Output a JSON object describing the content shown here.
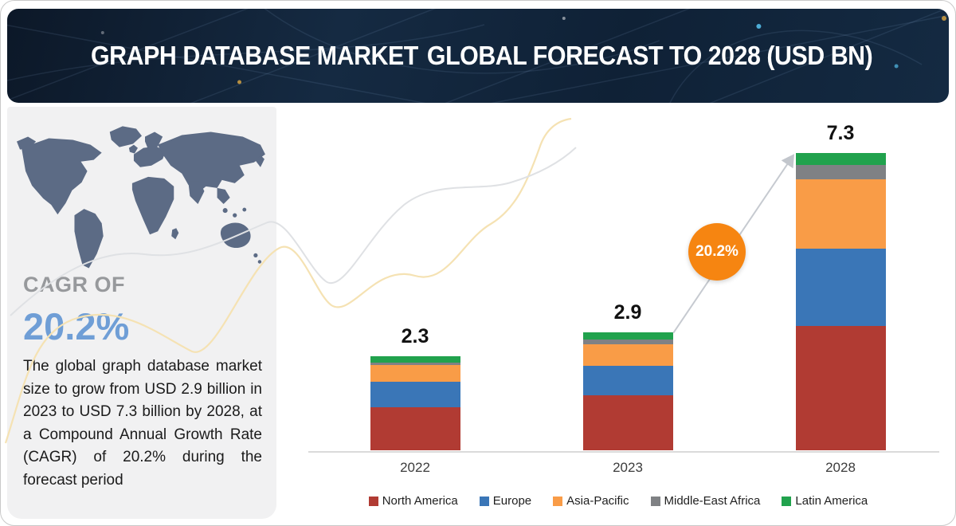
{
  "header": {
    "title_part1": "GRAPH DATABASE MARKET",
    "title_part2": "GLOBAL FORECAST TO 2028 (USD BN)",
    "bg_color": "#14273d"
  },
  "sidebar": {
    "cagr_label": "CAGR OF",
    "cagr_value": "20.2%",
    "description": "The global graph database market size to grow from USD 2.9 billion in 2023 to USD 7.3 billion by 2028, at a Compound Annual Growth Rate (CAGR) of 20.2% during the forecast period",
    "accent_color": "#6f9ed6",
    "map_color": "#5c6b85"
  },
  "chart_data": {
    "type": "bar",
    "stacked": true,
    "title": "Graph Database Market Global Forecast to 2028 (USD BN)",
    "categories": [
      "2022",
      "2023",
      "2028"
    ],
    "series": [
      {
        "name": "North America",
        "color": "#b13b33",
        "values": [
          1.06,
          1.35,
          3.05
        ]
      },
      {
        "name": "Europe",
        "color": "#3a76b7",
        "values": [
          0.63,
          0.72,
          1.9
        ]
      },
      {
        "name": "Asia-Pacific",
        "color": "#f99c47",
        "values": [
          0.41,
          0.53,
          1.7
        ]
      },
      {
        "name": "Middle-East Africa",
        "color": "#7f8184",
        "values": [
          0.06,
          0.12,
          0.35
        ]
      },
      {
        "name": "Latin America",
        "color": "#21a24d",
        "values": [
          0.14,
          0.18,
          0.3
        ]
      }
    ],
    "totals": [
      "2.3",
      "2.9",
      "7.3"
    ],
    "growth_badge": "20.2%",
    "badge_color": "#f68511",
    "axis_color": "#dadada",
    "legend_position": "bottom",
    "grid": false,
    "ylim": [
      0,
      7.5
    ]
  }
}
